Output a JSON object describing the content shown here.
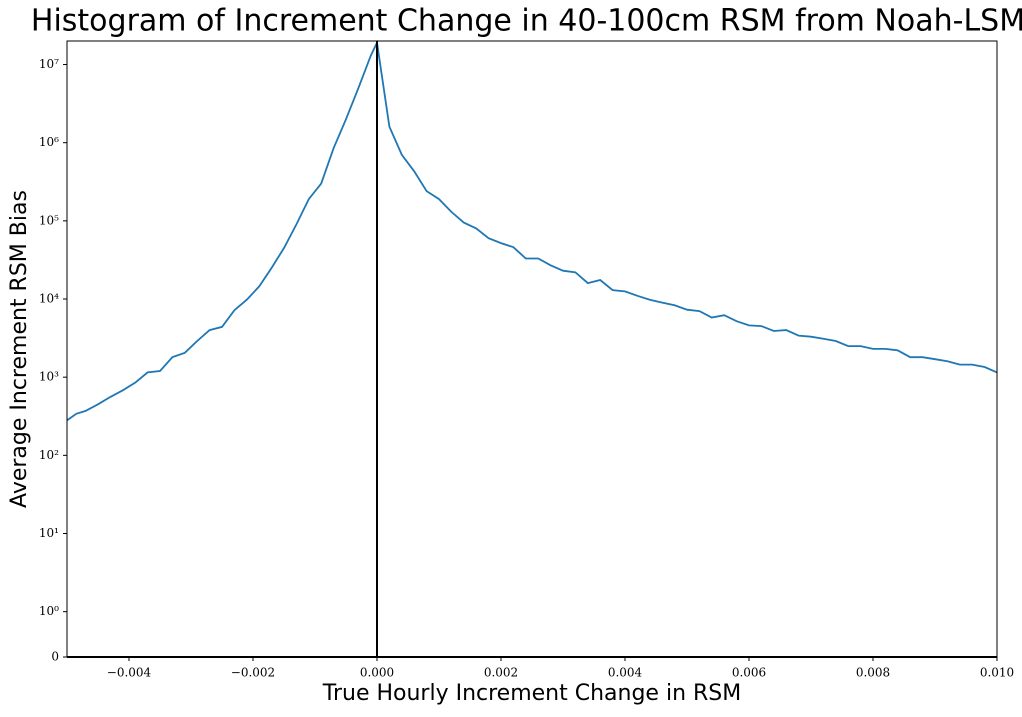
{
  "chart_data": {
    "type": "line",
    "title": "Histogram of Increment Change in 40-100cm RSM from Noah-LSM",
    "x_label": "True Hourly Increment Change in RSM",
    "y_label": "Average Increment RSM Bias",
    "yscale": "symlog",
    "vline": 0,
    "x": [
      -0.005,
      -0.00485,
      -0.0047,
      -0.0045,
      -0.0043,
      -0.0041,
      -0.0039,
      -0.0037,
      -0.0035,
      -0.0033,
      -0.0031,
      -0.0029,
      -0.0027,
      -0.0025,
      -0.0023,
      -0.0021,
      -0.0019,
      -0.0017,
      -0.0015,
      -0.0013,
      -0.0011,
      -0.0009,
      -0.0007,
      -0.0005,
      -0.0003,
      -0.0001,
      0.0,
      0.0002,
      0.0004,
      0.0006,
      0.0008,
      0.001,
      0.0012,
      0.0014,
      0.0016,
      0.0018,
      0.002,
      0.0022,
      0.0024,
      0.0026,
      0.0028,
      0.003,
      0.0032,
      0.0034,
      0.0036,
      0.0038,
      0.004,
      0.0042,
      0.0044,
      0.0046,
      0.0048,
      0.005,
      0.0052,
      0.0054,
      0.0056,
      0.0058,
      0.006,
      0.0062,
      0.0064,
      0.0066,
      0.0068,
      0.007,
      0.0072,
      0.0074,
      0.0076,
      0.0078,
      0.008,
      0.0082,
      0.0084,
      0.0086,
      0.0088,
      0.009,
      0.0092,
      0.0094,
      0.0096,
      0.0098,
      0.01
    ],
    "series": [
      {
        "color": "#1f77b4",
        "values": [
          280,
          340,
          370,
          450,
          560,
          680,
          850,
          1150,
          1200,
          1800,
          2050,
          2900,
          4000,
          4400,
          7200,
          9800,
          14500,
          25000,
          45000,
          90000,
          190000,
          300000,
          850000,
          2000000,
          5000000,
          13000000,
          19000000,
          1600000,
          700000,
          430000,
          240000,
          190000,
          130000,
          95000,
          80000,
          60000,
          52000,
          46000,
          33000,
          33000,
          27000,
          23000,
          22000,
          16000,
          17500,
          13000,
          12500,
          11000,
          9800,
          9000,
          8300,
          7300,
          7000,
          5800,
          6200,
          5200,
          4600,
          4500,
          3900,
          4000,
          3400,
          3300,
          3100,
          2900,
          2500,
          2500,
          2300,
          2300,
          2200,
          1800,
          1800,
          1700,
          1600,
          1450,
          1450,
          1350,
          1150
        ]
      }
    ],
    "xlim": [
      -0.005,
      0.01
    ],
    "xticks": [
      {
        "value": -0.004,
        "label": "−0.004"
      },
      {
        "value": -0.002,
        "label": "−0.002"
      },
      {
        "value": 0,
        "label": "0.000"
      },
      {
        "value": 0.002,
        "label": "0.002"
      },
      {
        "value": 0.004,
        "label": "0.004"
      },
      {
        "value": 0.006,
        "label": "0.006"
      },
      {
        "value": 0.008,
        "label": "0.008"
      },
      {
        "value": 0.01,
        "label": "0.010"
      }
    ],
    "ylim": [
      0,
      20000000
    ],
    "yticks": [
      0,
      {
        "value": 1,
        "label": "10⁰"
      },
      {
        "value": 10,
        "label": "10¹"
      },
      {
        "value": 100,
        "label": "10²"
      },
      {
        "value": 1000,
        "label": "10³"
      },
      {
        "value": 10000,
        "label": "10⁴"
      },
      {
        "value": 100000,
        "label": "10⁵"
      },
      {
        "value": 1000000,
        "label": "10⁶"
      },
      {
        "value": 10000000,
        "label": "10⁷"
      }
    ]
  }
}
